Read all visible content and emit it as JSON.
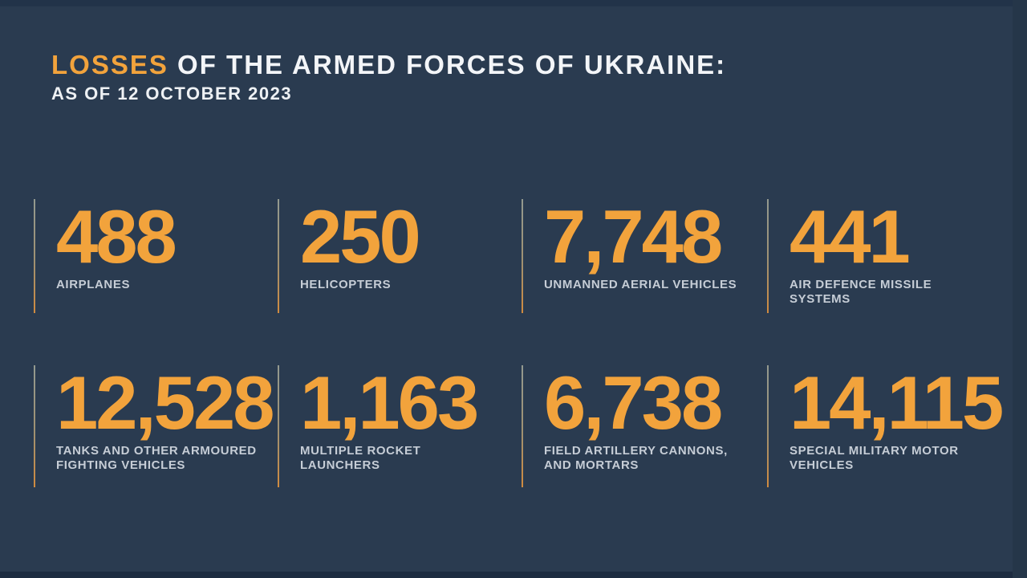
{
  "theme": {
    "background": "#2a3b50",
    "letterbox_top": "#223349",
    "letterbox_bottom": "#1d2c41",
    "edge_right": "#253649",
    "accent_orange": "#f2a33c",
    "title_color": "#f3f5f8",
    "label_color": "#c6cdd6",
    "separator_gradient_top": "#a5aa9b",
    "separator_gradient_bottom": "#d98f3e"
  },
  "header": {
    "title_highlight": "LOSSES",
    "title_rest": "OF THE ARMED FORCES OF UKRAINE:",
    "subtitle": "AS OF 12 OCTOBER 2023"
  },
  "stats": [
    {
      "value": "488",
      "label": "AIRPLANES"
    },
    {
      "value": "250",
      "label": "HELICOPTERS"
    },
    {
      "value": "7,748",
      "label": "UNMANNED AERIAL VEHICLES"
    },
    {
      "value": "441",
      "label": "AIR DEFENCE MISSILE SYSTEMS"
    },
    {
      "value": "12,528",
      "label": "TANKS AND OTHER ARMOURED FIGHTING VEHICLES"
    },
    {
      "value": "1,163",
      "label": "MULTIPLE ROCKET LAUNCHERS"
    },
    {
      "value": "6,738",
      "label": "FIELD ARTILLERY CANNONS, AND MORTARS"
    },
    {
      "value": "14,115",
      "label": "SPECIAL MILITARY MOTOR VEHICLES"
    }
  ],
  "chart_data": {
    "type": "table",
    "title": "LOSSES OF THE ARMED FORCES OF UKRAINE: AS OF 12 OCTOBER 2023",
    "categories": [
      "AIRPLANES",
      "HELICOPTERS",
      "UNMANNED AERIAL VEHICLES",
      "AIR DEFENCE MISSILE SYSTEMS",
      "TANKS AND OTHER ARMOURED FIGHTING VEHICLES",
      "MULTIPLE ROCKET LAUNCHERS",
      "FIELD ARTILLERY CANNONS, AND MORTARS",
      "SPECIAL MILITARY MOTOR VEHICLES"
    ],
    "values": [
      488,
      250,
      7748,
      441,
      12528,
      1163,
      6738,
      14115
    ],
    "layout": "2 rows x 4 stat cards, orange value above gray uppercase label, thin vertical separator left of each card"
  }
}
